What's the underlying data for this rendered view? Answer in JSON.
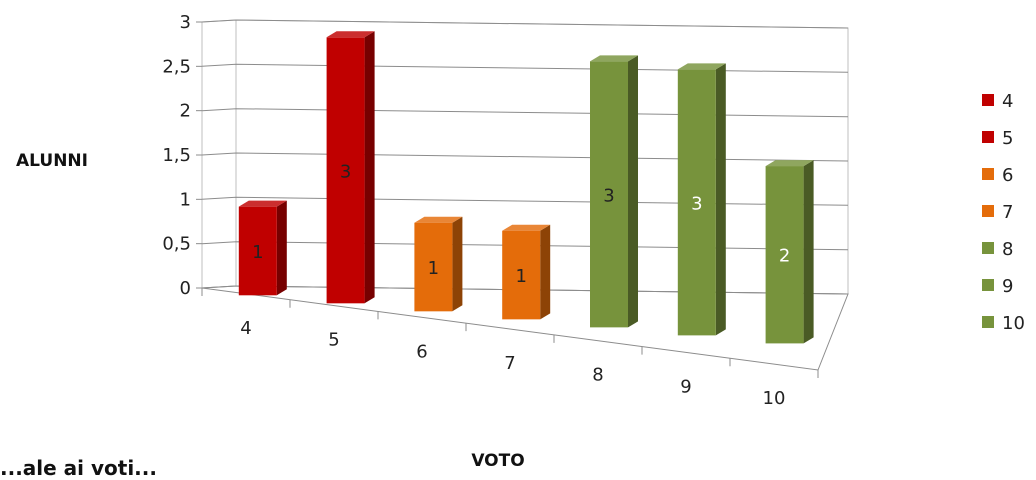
{
  "chart_data": {
    "type": "bar",
    "title": "",
    "xlabel": "VOTO",
    "ylabel": "ALUNNI",
    "ylim": [
      0,
      3
    ],
    "yticks": [
      "0",
      "0,5",
      "1",
      "1,5",
      "2",
      "2,5",
      "3"
    ],
    "categories": [
      "4",
      "5",
      "6",
      "7",
      "8",
      "9",
      "10"
    ],
    "values": [
      1,
      3,
      1,
      1,
      3,
      3,
      2
    ],
    "data_labels": [
      "1",
      "3",
      "1",
      "1",
      "3",
      "3",
      "2"
    ],
    "colors": [
      "#c00000",
      "#c00000",
      "#e46c0a",
      "#e46c0a",
      "#77933c",
      "#77933c",
      "#77933c"
    ],
    "label_colors": [
      "#222222",
      "#222222",
      "#222222",
      "#222222",
      "#222222",
      "#ffffff",
      "#ffffff"
    ],
    "legend": {
      "position": "right",
      "entries": [
        {
          "label": "4",
          "color": "#c00000"
        },
        {
          "label": "5",
          "color": "#c00000"
        },
        {
          "label": "6",
          "color": "#e46c0a"
        },
        {
          "label": "7",
          "color": "#e46c0a"
        },
        {
          "label": "8",
          "color": "#77933c"
        },
        {
          "label": "9",
          "color": "#77933c"
        },
        {
          "label": "10",
          "color": "#77933c"
        }
      ]
    },
    "grid": true,
    "style": "3d-column"
  },
  "partial_text": "...ale ai voti..."
}
